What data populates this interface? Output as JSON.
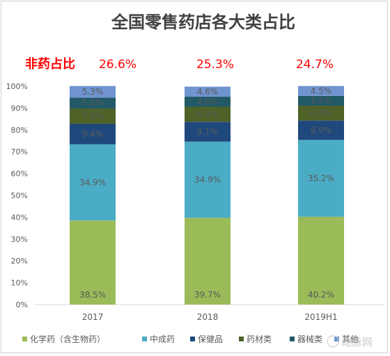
{
  "chart_data": {
    "type": "bar",
    "stacked": true,
    "title": "全国零售药店各大类占比",
    "categories": [
      "2017",
      "2018",
      "2019H1"
    ],
    "non_drug_share": {
      "label": "非药占比",
      "values": [
        "26.6%",
        "25.3%",
        "24.7%"
      ]
    },
    "series": [
      {
        "name": "化学药（含生物药）",
        "color": "#9bbb59",
        "values": [
          38.5,
          39.7,
          40.2
        ],
        "labels": [
          "38.5%",
          "39.7%",
          "40.2%"
        ]
      },
      {
        "name": "中成药",
        "color": "#4bacc6",
        "values": [
          34.9,
          34.9,
          35.2
        ],
        "labels": [
          "34.9%",
          "34.9%",
          "35.2%"
        ]
      },
      {
        "name": "保健品",
        "color": "#1f497d",
        "values": [
          9.4,
          9.1,
          8.9
        ],
        "labels": [
          "9.4%",
          "9.1%",
          "8.9%"
        ]
      },
      {
        "name": "药材类",
        "color": "#4f6228",
        "values": [
          7.0,
          6.9,
          6.8
        ],
        "labels": [
          "7.0%",
          "6.9%",
          "6.8%"
        ]
      },
      {
        "name": "器械类",
        "color": "#215967",
        "values": [
          5.0,
          4.6,
          4.5
        ],
        "labels": [
          "5.0%",
          "4.6%",
          "4.5%"
        ]
      },
      {
        "name": "其他",
        "color": "#6f94d0",
        "values": [
          5.3,
          4.6,
          4.5
        ],
        "labels": [
          "5.3%",
          "4.6%",
          "4.5%"
        ]
      }
    ],
    "yticks": [
      "0%",
      "10%",
      "20%",
      "30%",
      "40%",
      "50%",
      "60%",
      "70%",
      "80%",
      "90%",
      "100%"
    ],
    "ylim": [
      0,
      100
    ],
    "grid": false,
    "legend_position": "bottom"
  },
  "watermark": "动脉网 vcbeat.net"
}
